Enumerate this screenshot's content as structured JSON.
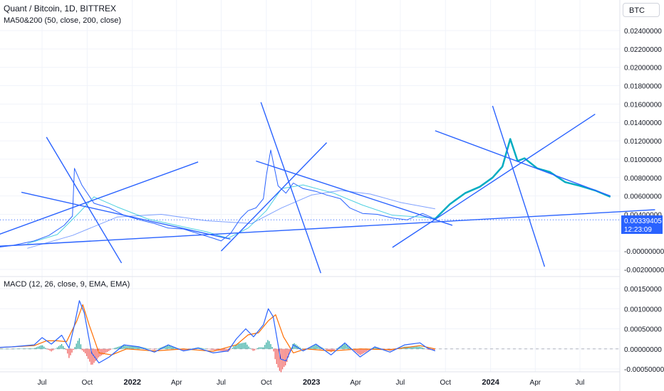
{
  "header": {
    "title": "Quant / Bitcoin, 1D, BITTREX",
    "indicator": "MA50&200 (50, close, 200, close)",
    "symbol_box": "BTC"
  },
  "last_price": {
    "value": "0.00339405",
    "countdown": "12:23:09"
  },
  "colors": {
    "grid": "#f0f3fa",
    "price": "#2962ff",
    "ma50": "#4dd0e1",
    "ma200": "#2962ff",
    "trendline": "#2962ff",
    "projection": "#00acc1",
    "macd": "#2962ff",
    "signal": "#ff6d00",
    "hist_up": "#26a69a",
    "hist_down": "#ef5350",
    "label_bg": "#2962ff"
  },
  "chart_data": [
    {
      "type": "line",
      "title": "Quant / Bitcoin, 1D, BITTREX",
      "y_tick_labels": [
        "0.02400000",
        "0.02200000",
        "0.02000000",
        "0.01800000",
        "0.01600000",
        "0.01400000",
        "0.01200000",
        "0.01000000",
        "0.00800000",
        "0.00600000",
        "0.00400000",
        "-0.00000000",
        "-0.00200000"
      ],
      "y_tick_values": [
        0.024,
        0.022,
        0.02,
        0.018,
        0.016,
        0.014,
        0.012,
        0.01,
        0.008,
        0.006,
        0.004,
        0.0,
        -0.002
      ],
      "ylim": [
        -0.0022,
        0.0255
      ],
      "x_tick_labels": [
        "Jul",
        "Oct",
        "2022",
        "Apr",
        "Jul",
        "Oct",
        "2023",
        "Apr",
        "Jul",
        "Oct",
        "2024",
        "Apr",
        "Jul"
      ],
      "x_tick_dates": [
        "2021-07-01",
        "2021-10-01",
        "2022-01-01",
        "2022-04-01",
        "2022-07-01",
        "2022-10-01",
        "2023-01-01",
        "2023-04-01",
        "2023-07-01",
        "2023-10-01",
        "2024-01-01",
        "2024-04-01",
        "2024-07-01"
      ],
      "grid": true,
      "series": [
        {
          "name": "Quant / Bitcoin",
          "x": [
            "2021-03-01",
            "2021-05-01",
            "2021-06-15",
            "2021-07-15",
            "2021-08-15",
            "2021-09-01",
            "2021-09-05",
            "2021-09-20",
            "2021-10-15",
            "2021-11-15",
            "2021-12-15",
            "2022-01-15",
            "2022-02-15",
            "2022-03-15",
            "2022-04-15",
            "2022-05-15",
            "2022-06-15",
            "2022-07-01",
            "2022-07-20",
            "2022-08-10",
            "2022-08-25",
            "2022-09-10",
            "2022-09-25",
            "2022-10-01",
            "2022-10-10",
            "2022-10-25",
            "2022-11-10",
            "2022-11-25",
            "2022-12-15",
            "2023-01-10",
            "2023-02-01",
            "2023-03-01",
            "2023-03-20",
            "2023-04-15",
            "2023-05-15",
            "2023-06-15",
            "2023-07-15",
            "2023-08-15",
            "2023-09-10"
          ],
          "y": [
            0.0002,
            0.0006,
            0.0011,
            0.0017,
            0.0028,
            0.0038,
            0.009,
            0.0072,
            0.0052,
            0.0047,
            0.0039,
            0.0034,
            0.003,
            0.0025,
            0.0024,
            0.0019,
            0.0014,
            0.0011,
            0.0019,
            0.0036,
            0.0044,
            0.0047,
            0.0057,
            0.0082,
            0.011,
            0.0071,
            0.0063,
            0.0074,
            0.0068,
            0.0065,
            0.0061,
            0.0057,
            0.0047,
            0.0041,
            0.004,
            0.0036,
            0.0034,
            0.0041,
            0.0035
          ]
        },
        {
          "name": "MA50",
          "x": [
            "2021-06-01",
            "2021-08-01",
            "2021-09-15",
            "2021-10-15",
            "2021-12-01",
            "2022-02-01",
            "2022-04-01",
            "2022-06-01",
            "2022-07-15",
            "2022-08-25",
            "2022-10-01",
            "2022-11-01",
            "2022-12-15",
            "2023-02-15",
            "2023-04-15",
            "2023-06-15",
            "2023-09-10"
          ],
          "y": [
            0.0008,
            0.0018,
            0.0042,
            0.0059,
            0.0048,
            0.0035,
            0.0028,
            0.0021,
            0.0014,
            0.0025,
            0.0044,
            0.0068,
            0.0072,
            0.0063,
            0.005,
            0.0039,
            0.0036
          ]
        },
        {
          "name": "MA200",
          "x": [
            "2021-06-01",
            "2021-09-01",
            "2021-12-01",
            "2022-03-01",
            "2022-06-01",
            "2022-09-01",
            "2022-11-01",
            "2023-01-01",
            "2023-03-01",
            "2023-05-01",
            "2023-07-01",
            "2023-09-10"
          ],
          "y": [
            0.0003,
            0.0017,
            0.0037,
            0.004,
            0.0033,
            0.003,
            0.0047,
            0.0061,
            0.0066,
            0.0062,
            0.0053,
            0.0046
          ]
        },
        {
          "name": "Projection",
          "x": [
            "2023-09-10",
            "2023-10-10",
            "2023-11-10",
            "2023-12-10",
            "2024-01-05",
            "2024-01-25",
            "2024-02-10",
            "2024-02-25",
            "2024-03-10",
            "2024-04-05",
            "2024-05-01",
            "2024-06-01",
            "2024-07-01",
            "2024-08-01",
            "2024-09-01"
          ],
          "y": [
            0.0035,
            0.0051,
            0.0063,
            0.007,
            0.008,
            0.0092,
            0.0122,
            0.0098,
            0.0101,
            0.009,
            0.0086,
            0.0075,
            0.0071,
            0.0066,
            0.0059
          ]
        }
      ]
    },
    {
      "type": "line",
      "title": "MACD (12, 26, close, 9, EMA, EMA)",
      "y_tick_labels": [
        "0.00150000",
        "0.00100000",
        "0.00050000",
        "0.00000000",
        "-0.00050000"
      ],
      "y_tick_values": [
        0.0015,
        0.001,
        0.0005,
        0.0,
        -0.0005
      ],
      "ylim": [
        -0.00062,
        0.00178
      ],
      "series": [
        {
          "name": "MACD",
          "x": [
            "2021-03-01",
            "2021-05-01",
            "2021-06-15",
            "2021-07-01",
            "2021-07-20",
            "2021-08-10",
            "2021-08-25",
            "2021-09-05",
            "2021-09-15",
            "2021-09-25",
            "2021-10-10",
            "2021-10-25",
            "2021-11-15",
            "2021-12-15",
            "2022-01-15",
            "2022-02-15",
            "2022-03-15",
            "2022-04-15",
            "2022-05-15",
            "2022-06-15",
            "2022-07-15",
            "2022-08-01",
            "2022-08-20",
            "2022-09-05",
            "2022-09-25",
            "2022-10-05",
            "2022-10-15",
            "2022-10-30",
            "2022-11-10",
            "2022-11-25",
            "2022-12-15",
            "2023-01-10",
            "2023-02-10",
            "2023-03-10",
            "2023-04-10",
            "2023-05-10",
            "2023-06-10",
            "2023-07-10",
            "2023-08-10",
            "2023-08-25",
            "2023-09-10"
          ],
          "y": [
            2e-05,
            5e-05,
            0.0001,
            0.00028,
            0.00012,
            0.00034,
            2e-05,
            0.0006,
            0.0012,
            0.0009,
            -0.0001,
            -0.00035,
            -0.0002,
            0.0001,
            5e-05,
            -8e-05,
            0.0001,
            -5e-05,
            2e-05,
            -0.0001,
            -5e-05,
            0.00025,
            0.0005,
            0.0003,
            0.0006,
            0.001,
            0.0008,
            -0.00025,
            -0.0003,
            0.0001,
            -5e-05,
            0.00012,
            -0.00015,
            0.00015,
            -0.0002,
            5e-05,
            -8e-05,
            0.0001,
            0.00015,
            2e-05,
            -5e-05
          ]
        },
        {
          "name": "Signal",
          "x": [
            "2021-03-01",
            "2021-06-15",
            "2021-07-10",
            "2021-08-01",
            "2021-08-20",
            "2021-09-10",
            "2021-09-22",
            "2021-10-05",
            "2021-10-25",
            "2021-11-20",
            "2021-12-20",
            "2022-02-15",
            "2022-04-15",
            "2022-06-15",
            "2022-08-01",
            "2022-08-25",
            "2022-09-15",
            "2022-10-05",
            "2022-10-20",
            "2022-11-05",
            "2022-11-25",
            "2022-12-20",
            "2023-02-10",
            "2023-04-10",
            "2023-06-10",
            "2023-08-10",
            "2023-09-10"
          ],
          "y": [
            1e-05,
            8e-05,
            0.0002,
            0.0002,
            0.00018,
            0.0007,
            0.0011,
            0.0006,
            -0.0001,
            -0.00015,
            0.0,
            -5e-05,
            0.0,
            -6e-05,
            0.0001,
            0.00035,
            0.0004,
            0.0007,
            0.00085,
            0.0003,
            -0.0001,
            0.0,
            -5e-05,
            0.0,
            -2e-05,
            8e-05,
            0.0
          ]
        }
      ]
    }
  ]
}
